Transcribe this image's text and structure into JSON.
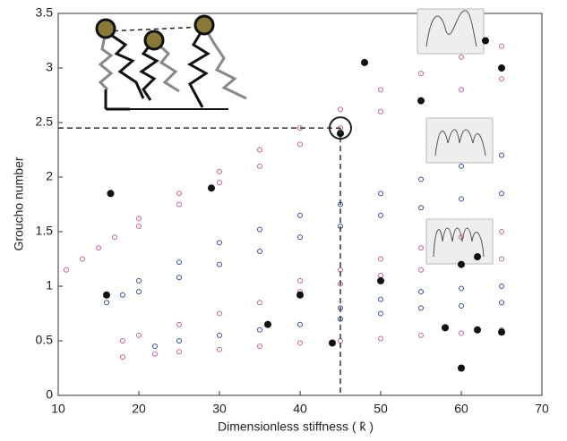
{
  "chart_data": {
    "type": "scatter",
    "xlabel": "Dimensionless stiffness ( k̂ )",
    "ylabel": "Groucho number",
    "xlim": [
      10,
      70
    ],
    "xticks": [
      10,
      20,
      30,
      40,
      50,
      60,
      70
    ],
    "ylim": [
      0,
      3.5
    ],
    "yticks": [
      0,
      0.5,
      1,
      1.5,
      2,
      2.5,
      3,
      3.5
    ],
    "reference": {
      "x": 45,
      "y": 2.45
    },
    "series": [
      {
        "color": "#c0609a",
        "x": [
          11,
          13,
          15,
          17,
          20,
          20,
          25,
          25,
          30,
          30,
          35,
          35,
          40,
          40,
          45,
          45,
          50,
          50,
          55,
          55,
          60,
          60,
          65,
          65
        ],
        "values": [
          1.15,
          1.25,
          1.35,
          1.45,
          1.55,
          1.62,
          1.75,
          1.85,
          1.95,
          2.05,
          2.1,
          2.25,
          2.3,
          2.45,
          2.45,
          2.62,
          2.6,
          2.8,
          2.7,
          2.95,
          2.8,
          3.1,
          2.9,
          3.2
        ]
      },
      {
        "color": "#3a4f9a",
        "x": [
          16,
          18,
          20,
          20,
          25,
          25,
          30,
          30,
          35,
          35,
          40,
          40,
          45,
          45,
          50,
          50,
          55,
          55,
          60,
          60,
          65,
          65
        ],
        "values": [
          0.85,
          0.92,
          0.95,
          1.05,
          1.08,
          1.22,
          1.2,
          1.4,
          1.32,
          1.52,
          1.45,
          1.65,
          1.55,
          1.75,
          1.65,
          1.85,
          1.72,
          1.98,
          1.8,
          2.1,
          1.85,
          2.2
        ]
      },
      {
        "color": "#c0609a",
        "x": [
          18,
          20,
          25,
          30,
          35,
          40,
          40,
          45,
          45,
          50,
          50,
          55,
          55,
          60,
          60,
          65,
          65
        ],
        "values": [
          0.5,
          0.55,
          0.65,
          0.75,
          0.85,
          0.95,
          1.05,
          1.02,
          1.15,
          1.1,
          1.25,
          1.15,
          1.35,
          1.2,
          1.45,
          1.25,
          1.5
        ]
      },
      {
        "color": "#3a4f9a",
        "x": [
          22,
          25,
          30,
          35,
          40,
          45,
          45,
          50,
          50,
          55,
          55,
          60,
          60,
          65,
          65
        ],
        "values": [
          0.45,
          0.5,
          0.55,
          0.6,
          0.65,
          0.7,
          0.8,
          0.75,
          0.88,
          0.8,
          0.95,
          0.82,
          0.98,
          0.85,
          1.0
        ]
      },
      {
        "color": "#c0609a",
        "x": [
          18,
          22,
          25,
          30,
          35,
          40,
          45,
          50,
          55,
          60,
          65
        ],
        "values": [
          0.35,
          0.38,
          0.4,
          0.42,
          0.45,
          0.48,
          0.5,
          0.52,
          0.55,
          0.57,
          0.6
        ]
      },
      {
        "color": "#111111",
        "x": [
          16,
          16.5,
          29,
          45,
          48,
          55,
          63,
          65,
          40,
          50,
          60,
          62,
          36,
          44,
          58,
          62,
          65,
          60
        ],
        "values": [
          0.92,
          1.85,
          1.9,
          2.4,
          3.05,
          2.7,
          3.25,
          3.0,
          0.92,
          1.05,
          1.2,
          1.27,
          0.65,
          0.48,
          0.62,
          0.6,
          0.58,
          0.25
        ]
      }
    ]
  }
}
